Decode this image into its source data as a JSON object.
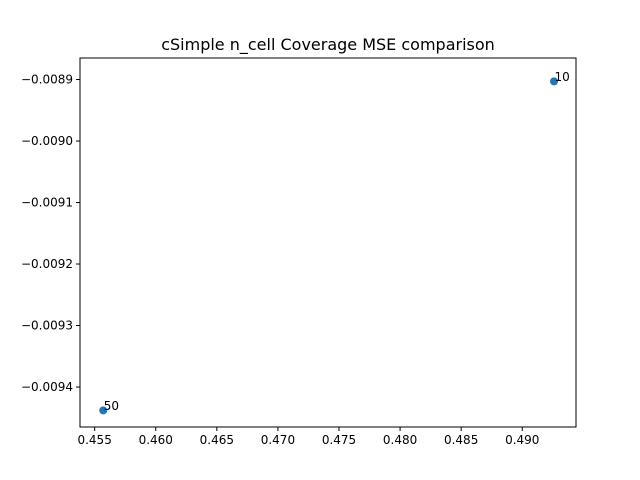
{
  "chart_data": {
    "type": "scatter",
    "title": "cSimple n_cell Coverage MSE comparison",
    "xlabel": "",
    "ylabel": "",
    "xlim": [
      0.4538,
      0.4944
    ],
    "ylim": [
      -0.009465,
      -0.008865
    ],
    "x_ticks": [
      0.455,
      0.46,
      0.465,
      0.47,
      0.475,
      0.48,
      0.485,
      0.49
    ],
    "x_tick_labels": [
      "0.455",
      "0.460",
      "0.465",
      "0.470",
      "0.475",
      "0.480",
      "0.485",
      "0.490"
    ],
    "y_ticks": [
      -0.0094,
      -0.0093,
      -0.0092,
      -0.0091,
      -0.009,
      -0.0089
    ],
    "y_tick_labels": [
      "−0.0094",
      "−0.0093",
      "−0.0092",
      "−0.0091",
      "−0.0090",
      "−0.0089"
    ],
    "grid": false,
    "point_color": "#1f77b4",
    "points": [
      {
        "x": 0.4926,
        "y": -0.008903,
        "label": "10"
      },
      {
        "x": 0.4557,
        "y": -0.009438,
        "label": "50"
      }
    ]
  }
}
